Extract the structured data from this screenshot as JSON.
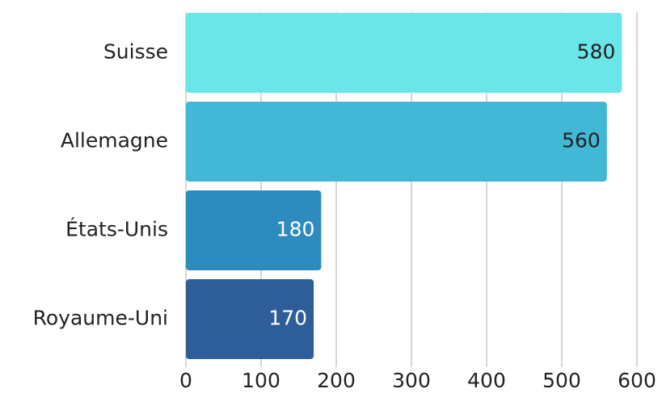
{
  "chart_data": {
    "type": "hbar",
    "categories": [
      "Suisse",
      "Allemagne",
      "États-Unis",
      "Royaume-Uni"
    ],
    "values": [
      580,
      560,
      180,
      170
    ],
    "colors": [
      "#6ae6e9",
      "#42b8d6",
      "#2e8bbd",
      "#2e5e99"
    ],
    "xlim": [
      0,
      600
    ],
    "xticks": [
      0,
      100,
      200,
      300,
      400,
      500,
      600
    ],
    "grid": true
  }
}
